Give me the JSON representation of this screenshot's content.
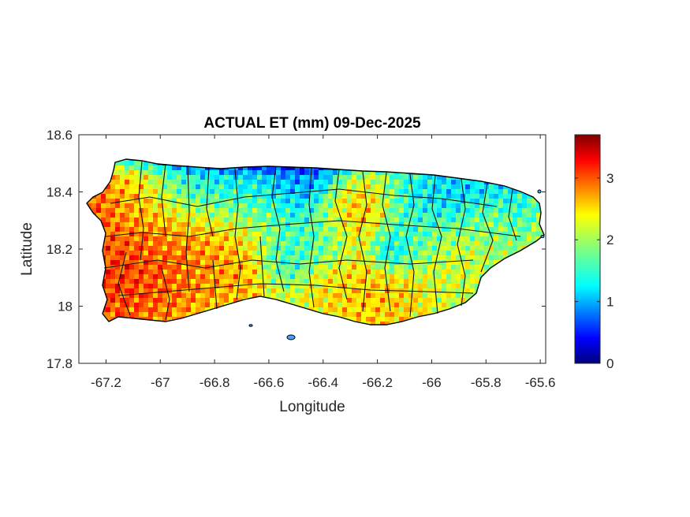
{
  "chart_data": {
    "type": "heatmap",
    "title": "ACTUAL ET (mm) 09-Dec-2025",
    "xlabel": "Longitude",
    "ylabel": "Latitude",
    "xlim": [
      -67.3,
      -65.58
    ],
    "ylim": [
      17.8,
      18.6
    ],
    "xticks": [
      -67.2,
      -67,
      -66.8,
      -66.6,
      -66.4,
      -66.2,
      -66,
      -65.8,
      -65.6
    ],
    "xtick_labels": [
      "-67.2",
      "-67",
      "-66.8",
      "-66.6",
      "-66.4",
      "-66.2",
      "-66",
      "-65.8",
      "-65.6"
    ],
    "yticks": [
      17.8,
      18,
      18.2,
      18.4,
      18.6
    ],
    "ytick_labels": [
      "17.8",
      "18",
      "18.2",
      "18.4",
      "18.6"
    ],
    "colormap": "jet",
    "clim": [
      0,
      3.7
    ],
    "colorbar_ticks": [
      0,
      1,
      2,
      3
    ],
    "colorbar_tick_labels": [
      "0",
      "1",
      "2",
      "3"
    ],
    "grid": false
  }
}
